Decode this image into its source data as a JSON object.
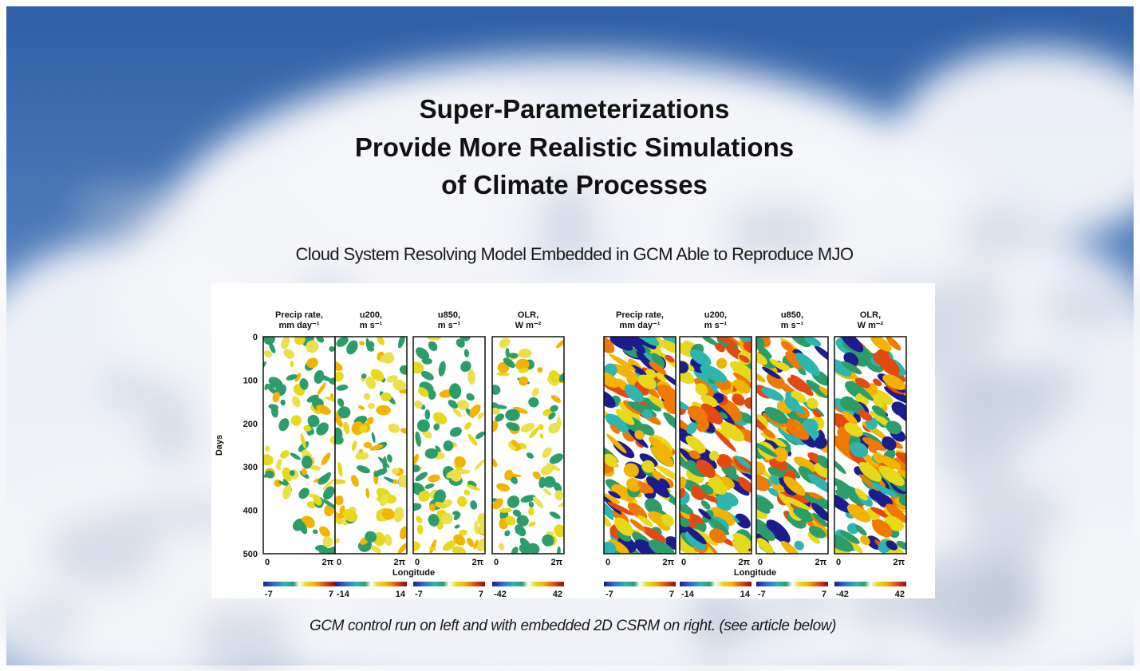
{
  "title": [
    "Super-Parameterizations",
    "Provide More Realistic Simulations",
    "of Climate Processes"
  ],
  "subtitle": "Cloud System Resolving Model Embedded in GCM Able to Reproduce MJO",
  "figure": {
    "y_label": "Days",
    "y_ticks": [
      0,
      100,
      200,
      300,
      400,
      500
    ],
    "groups": [
      {
        "x_label": "Longitude",
        "panels": [
          {
            "header": [
              "Precip  rate,",
              "mm  day⁻¹"
            ],
            "x_ticks": [
              "0",
              "2π"
            ],
            "colorbar": [
              -7,
              7
            ]
          },
          {
            "header": [
              "u200,",
              "m  s⁻¹"
            ],
            "x_ticks": [
              "0",
              "2π"
            ],
            "colorbar": [
              -14,
              14
            ]
          },
          {
            "header": [
              "u850,",
              "m  s⁻¹"
            ],
            "x_ticks": [
              "0",
              "2π"
            ],
            "colorbar": [
              -7,
              7
            ]
          },
          {
            "header": [
              "OLR,",
              "W  m⁻²"
            ],
            "x_ticks": [
              "0",
              "2π"
            ],
            "colorbar": [
              -42,
              42
            ]
          }
        ]
      },
      {
        "x_label": "Longitude",
        "panels": [
          {
            "header": [
              "Precip  rate,",
              "mm  day⁻¹"
            ],
            "x_ticks": [
              "0",
              "2π"
            ],
            "colorbar": [
              -7,
              7
            ]
          },
          {
            "header": [
              "u200,",
              "m  s⁻¹"
            ],
            "x_ticks": [
              "0",
              "2π"
            ],
            "colorbar": [
              -14,
              14
            ]
          },
          {
            "header": [
              "u850,",
              "m  s⁻¹"
            ],
            "x_ticks": [
              "0",
              "2π"
            ],
            "colorbar": [
              -7,
              7
            ]
          },
          {
            "header": [
              "OLR,",
              "W  m⁻²"
            ],
            "x_ticks": [
              "0",
              "2π"
            ],
            "colorbar": [
              -42,
              42
            ]
          }
        ]
      }
    ]
  },
  "caption": "GCM control run on left and with embedded 2D CSRM on right. (see article below)"
}
